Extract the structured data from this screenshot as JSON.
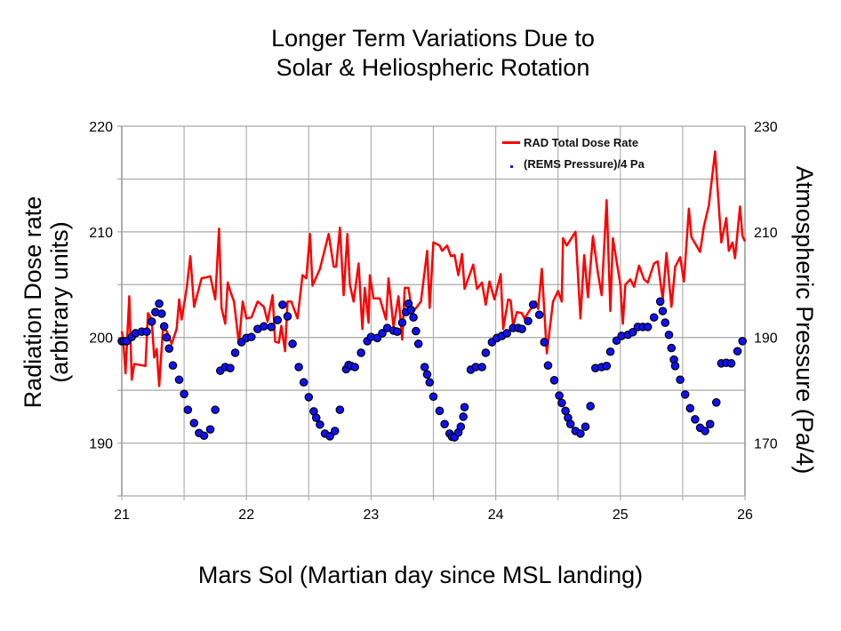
{
  "chart_data": {
    "type": "line",
    "title": [
      "Longer Term Variations Due to",
      "Solar & Heliospheric Rotation"
    ],
    "xlabel": "Mars Sol (Martian day since MSL landing)",
    "ylabel": [
      "Radiation Dose rate",
      "(arbitrary units)"
    ],
    "ylabel_right": "Atmospheric Pressure (Pa/4)",
    "xlim": [
      21,
      26
    ],
    "ylim": [
      185,
      220
    ],
    "ylim_right": [
      160,
      230
    ],
    "x_ticks": [
      "21",
      "22",
      "23",
      "24",
      "25",
      "26"
    ],
    "y_ticks": [
      "190",
      "200",
      "210",
      "220"
    ],
    "y_ticks_right": [
      "170",
      "190",
      "210",
      "230"
    ],
    "grid": true,
    "legend": "top-right",
    "colors": {
      "dose": "#ff0000",
      "pressure": "#1010ff"
    },
    "series": [
      {
        "name": "RAD Total Dose Rate",
        "axis": "left",
        "type": "line",
        "points": [
          [
            21.0,
            200.6
          ],
          [
            21.01,
            200
          ],
          [
            21.03,
            196.6
          ],
          [
            21.06,
            203.9
          ],
          [
            21.08,
            196
          ],
          [
            21.1,
            197.5
          ],
          [
            21.19,
            197.3
          ],
          [
            21.21,
            202.3
          ],
          [
            21.24,
            201.7
          ],
          [
            21.26,
            198.1
          ],
          [
            21.28,
            198.9
          ],
          [
            21.3,
            195.4
          ],
          [
            21.33,
            200.8
          ],
          [
            21.36,
            200.6
          ],
          [
            21.4,
            199.4
          ],
          [
            21.44,
            200.8
          ],
          [
            21.46,
            203.6
          ],
          [
            21.48,
            201.7
          ],
          [
            21.52,
            204.6
          ],
          [
            21.55,
            207.7
          ],
          [
            21.58,
            202.9
          ],
          [
            21.64,
            205.6
          ],
          [
            21.68,
            205.7
          ],
          [
            21.71,
            205.8
          ],
          [
            21.75,
            203.6
          ],
          [
            21.78,
            210.3
          ],
          [
            21.8,
            202.8
          ],
          [
            21.83,
            201.3
          ],
          [
            21.85,
            205.2
          ],
          [
            21.87,
            204.4
          ],
          [
            21.9,
            203.4
          ],
          [
            21.94,
            199.4
          ],
          [
            21.97,
            203.4
          ],
          [
            22.0,
            201.8
          ],
          [
            22.04,
            201.9
          ],
          [
            22.09,
            203.4
          ],
          [
            22.14,
            202.9
          ],
          [
            22.17,
            201.5
          ],
          [
            22.21,
            204
          ],
          [
            22.23,
            199.6
          ],
          [
            22.26,
            199.5
          ],
          [
            22.28,
            201.1
          ],
          [
            22.31,
            198.7
          ],
          [
            22.33,
            203.4
          ],
          [
            22.36,
            203.4
          ],
          [
            22.41,
            201.8
          ],
          [
            22.45,
            205.9
          ],
          [
            22.48,
            205.6
          ],
          [
            22.51,
            209.8
          ],
          [
            22.53,
            204.9
          ],
          [
            22.59,
            206.5
          ],
          [
            22.66,
            209.8
          ],
          [
            22.7,
            206.7
          ],
          [
            22.72,
            206.7
          ],
          [
            22.75,
            210.4
          ],
          [
            22.78,
            204
          ],
          [
            22.81,
            209.8
          ],
          [
            22.83,
            205
          ],
          [
            22.86,
            203.4
          ],
          [
            22.9,
            207
          ],
          [
            22.93,
            200.8
          ],
          [
            22.95,
            204.7
          ],
          [
            22.98,
            201.4
          ],
          [
            22.99,
            205.9
          ],
          [
            23.02,
            203.7
          ],
          [
            23.07,
            203.7
          ],
          [
            23.12,
            201.7
          ],
          [
            23.14,
            205.6
          ],
          [
            23.18,
            201
          ],
          [
            23.22,
            203.9
          ],
          [
            23.25,
            199.8
          ],
          [
            23.27,
            204.7
          ],
          [
            23.3,
            204.7
          ],
          [
            23.33,
            202.3
          ],
          [
            23.4,
            203.4
          ],
          [
            23.45,
            208.2
          ],
          [
            23.47,
            202.8
          ],
          [
            23.5,
            209
          ],
          [
            23.55,
            208.7
          ],
          [
            23.57,
            208.2
          ],
          [
            23.61,
            208.7
          ],
          [
            23.64,
            207.7
          ],
          [
            23.67,
            207.8
          ],
          [
            23.7,
            205.9
          ],
          [
            23.73,
            207.9
          ],
          [
            23.75,
            204.6
          ],
          [
            23.82,
            206.9
          ],
          [
            23.85,
            204.6
          ],
          [
            23.89,
            205.2
          ],
          [
            23.92,
            203.1
          ],
          [
            23.95,
            205.3
          ],
          [
            23.99,
            203.6
          ],
          [
            24.04,
            206
          ],
          [
            24.06,
            200.8
          ],
          [
            24.1,
            203.6
          ],
          [
            24.12,
            203.5
          ],
          [
            24.14,
            201.1
          ],
          [
            24.17,
            202.4
          ],
          [
            24.21,
            202.3
          ],
          [
            24.23,
            201.8
          ],
          [
            24.28,
            202.7
          ],
          [
            24.32,
            203.4
          ],
          [
            24.34,
            202.7
          ],
          [
            24.37,
            206.5
          ],
          [
            24.41,
            198.5
          ],
          [
            24.46,
            203.4
          ],
          [
            24.5,
            204.4
          ],
          [
            24.53,
            203.4
          ],
          [
            24.54,
            209.4
          ],
          [
            24.57,
            208.7
          ],
          [
            24.64,
            210
          ],
          [
            24.68,
            201.8
          ],
          [
            24.71,
            207.8
          ],
          [
            24.74,
            203.8
          ],
          [
            24.78,
            209.6
          ],
          [
            24.82,
            206.1
          ],
          [
            24.85,
            204
          ],
          [
            24.89,
            213
          ],
          [
            24.92,
            202.5
          ],
          [
            24.94,
            209.4
          ],
          [
            25.0,
            205
          ],
          [
            25.02,
            201.3
          ],
          [
            25.04,
            205
          ],
          [
            25.08,
            205.5
          ],
          [
            25.11,
            204.8
          ],
          [
            25.15,
            206.8
          ],
          [
            25.19,
            205.5
          ],
          [
            25.22,
            205.2
          ],
          [
            25.27,
            207
          ],
          [
            25.3,
            207.2
          ],
          [
            25.34,
            203.6
          ],
          [
            25.37,
            208
          ],
          [
            25.41,
            202.9
          ],
          [
            25.44,
            206.7
          ],
          [
            25.48,
            207.6
          ],
          [
            25.51,
            205.3
          ],
          [
            25.55,
            212.2
          ],
          [
            25.57,
            209.5
          ],
          [
            25.64,
            208.1
          ],
          [
            25.67,
            210.5
          ],
          [
            25.71,
            212.5
          ],
          [
            25.76,
            217.6
          ],
          [
            25.81,
            209
          ],
          [
            25.85,
            211.3
          ],
          [
            25.87,
            208.2
          ],
          [
            25.9,
            209
          ],
          [
            25.92,
            207.5
          ],
          [
            25.96,
            212.4
          ],
          [
            25.98,
            209.6
          ],
          [
            26.0,
            209.1
          ]
        ]
      },
      {
        "name": "(REMS Pressure)/4 Pa",
        "axis": "right",
        "type": "scatter",
        "points": [
          [
            21.0,
            189.3
          ],
          [
            21.02,
            189.3
          ],
          [
            21.04,
            189.3
          ],
          [
            21.08,
            190.1
          ],
          [
            21.11,
            190.8
          ],
          [
            21.16,
            191.1
          ],
          [
            21.2,
            191.1
          ],
          [
            21.24,
            193
          ],
          [
            21.27,
            194.8
          ],
          [
            21.3,
            196.4
          ],
          [
            21.32,
            194.5
          ],
          [
            21.34,
            192.1
          ],
          [
            21.36,
            190
          ],
          [
            21.38,
            187.9
          ],
          [
            21.41,
            184.7
          ],
          [
            21.46,
            182
          ],
          [
            21.5,
            179.3
          ],
          [
            21.53,
            176.3
          ],
          [
            21.58,
            173.8
          ],
          [
            21.62,
            171.9
          ],
          [
            21.66,
            171.4
          ],
          [
            21.71,
            172.6
          ],
          [
            21.75,
            176.3
          ],
          [
            21.79,
            183.7
          ],
          [
            21.83,
            184.4
          ],
          [
            21.87,
            184.2
          ],
          [
            21.91,
            187.1
          ],
          [
            21.96,
            189.1
          ],
          [
            22.0,
            189.9
          ],
          [
            22.04,
            190.1
          ],
          [
            22.09,
            191.6
          ],
          [
            22.14,
            192.1
          ],
          [
            22.2,
            192
          ],
          [
            22.25,
            193.3
          ],
          [
            22.29,
            196.2
          ],
          [
            22.33,
            194
          ],
          [
            22.37,
            188.8
          ],
          [
            22.42,
            184.4
          ],
          [
            22.46,
            181.5
          ],
          [
            22.5,
            178.7
          ],
          [
            22.54,
            176
          ],
          [
            22.56,
            174.8
          ],
          [
            22.59,
            173.5
          ],
          [
            22.63,
            171.8
          ],
          [
            22.67,
            171.3
          ],
          [
            22.71,
            172.3
          ],
          [
            22.75,
            176.3
          ],
          [
            22.8,
            184
          ],
          [
            22.82,
            184.8
          ],
          [
            22.84,
            184.6
          ],
          [
            22.87,
            184.4
          ],
          [
            22.92,
            187.1
          ],
          [
            22.97,
            189.3
          ],
          [
            23.0,
            190.1
          ],
          [
            23.05,
            189.9
          ],
          [
            23.09,
            190.8
          ],
          [
            23.13,
            191.8
          ],
          [
            23.18,
            191.3
          ],
          [
            23.21,
            191.1
          ],
          [
            23.25,
            192.8
          ],
          [
            23.28,
            194.8
          ],
          [
            23.3,
            196.4
          ],
          [
            23.32,
            195.2
          ],
          [
            23.34,
            193.8
          ],
          [
            23.36,
            191.2
          ],
          [
            23.38,
            188.8
          ],
          [
            23.43,
            184.4
          ],
          [
            23.45,
            183
          ],
          [
            23.47,
            181.5
          ],
          [
            23.5,
            178.8
          ],
          [
            23.55,
            176.1
          ],
          [
            23.59,
            173.6
          ],
          [
            23.63,
            171.8
          ],
          [
            23.65,
            171.2
          ],
          [
            23.67,
            171.1
          ],
          [
            23.7,
            172
          ],
          [
            23.72,
            173.1
          ],
          [
            23.74,
            175
          ],
          [
            23.75,
            176.8
          ],
          [
            23.8,
            183.9
          ],
          [
            23.84,
            184.4
          ],
          [
            23.89,
            184.4
          ],
          [
            23.92,
            187.1
          ],
          [
            23.97,
            189.1
          ],
          [
            24.01,
            189.9
          ],
          [
            24.05,
            190.3
          ],
          [
            24.09,
            190.8
          ],
          [
            24.14,
            191.8
          ],
          [
            24.18,
            191.8
          ],
          [
            24.21,
            191.6
          ],
          [
            24.26,
            193.1
          ],
          [
            24.3,
            196.2
          ],
          [
            24.35,
            194.3
          ],
          [
            24.39,
            189.1
          ],
          [
            24.42,
            184.7
          ],
          [
            24.47,
            181.9
          ],
          [
            24.51,
            179
          ],
          [
            24.53,
            177.6
          ],
          [
            24.56,
            176.1
          ],
          [
            24.58,
            174.8
          ],
          [
            24.6,
            173.6
          ],
          [
            24.64,
            172.3
          ],
          [
            24.68,
            171.8
          ],
          [
            24.72,
            173.1
          ],
          [
            24.76,
            177
          ],
          [
            24.8,
            184.2
          ],
          [
            24.85,
            184.4
          ],
          [
            24.89,
            184.6
          ],
          [
            24.92,
            187.3
          ],
          [
            24.97,
            189.4
          ],
          [
            25.01,
            190.3
          ],
          [
            25.06,
            190.5
          ],
          [
            25.1,
            191
          ],
          [
            25.14,
            192
          ],
          [
            25.18,
            192
          ],
          [
            25.22,
            192
          ],
          [
            25.27,
            193.8
          ],
          [
            25.32,
            196.8
          ],
          [
            25.34,
            195
          ],
          [
            25.36,
            192.8
          ],
          [
            25.39,
            190.5
          ],
          [
            25.41,
            188
          ],
          [
            25.43,
            185.8
          ],
          [
            25.44,
            184.6
          ],
          [
            25.48,
            182
          ],
          [
            25.52,
            179.2
          ],
          [
            25.56,
            176.6
          ],
          [
            25.6,
            174.5
          ],
          [
            25.64,
            172.9
          ],
          [
            25.68,
            172.3
          ],
          [
            25.72,
            173.6
          ],
          [
            25.77,
            177.7
          ],
          [
            25.81,
            185.1
          ],
          [
            25.85,
            185.2
          ],
          [
            25.89,
            185.1
          ],
          [
            25.94,
            187.4
          ],
          [
            25.98,
            189.3
          ]
        ]
      }
    ]
  }
}
